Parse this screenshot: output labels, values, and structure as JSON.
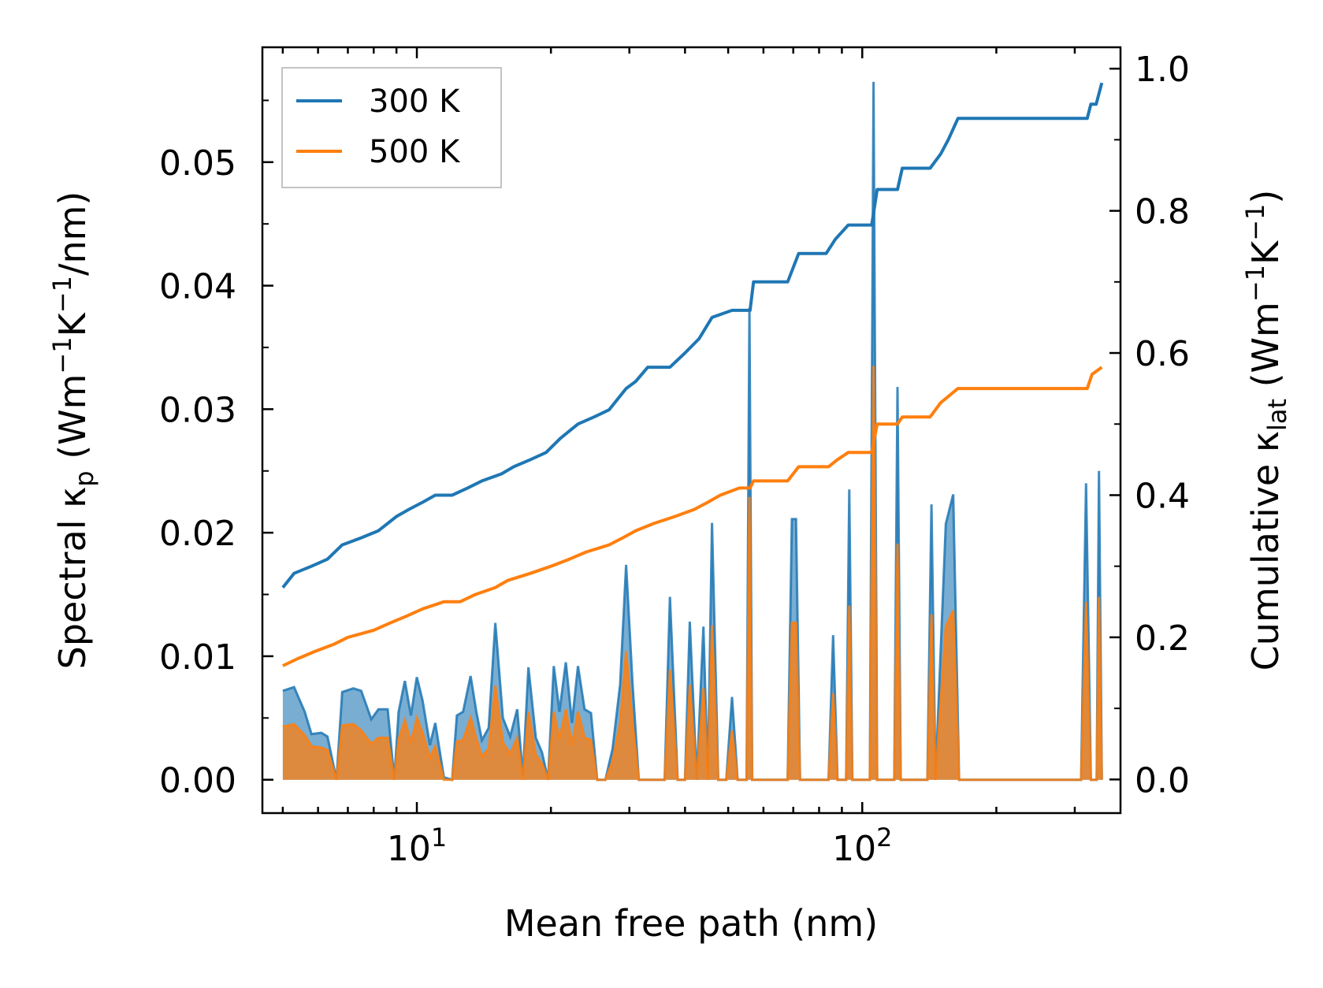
{
  "chart_data": {
    "type": "line",
    "xscale": "log",
    "xlim": [
      4.5,
      380
    ],
    "ylim_left": [
      -0.0027,
      0.0593
    ],
    "ylim_right": [
      -0.0473,
      1.0301
    ],
    "xlabel": "Mean free path (nm)",
    "ylabel_left": {
      "prefix": "Spectral κ",
      "sub": "p",
      "suffix": " (Wm",
      "sup1": "−1",
      "mid": "K",
      "sup2": "−1",
      "end": "/nm)"
    },
    "ylabel_right": {
      "prefix": "Cumulative κ",
      "sub": "lat",
      "suffix": " (Wm",
      "sup1": "−1",
      "mid": "K",
      "sup2": "−1",
      "end": ")"
    },
    "xticks_major": [
      {
        "value": 10,
        "base": "10",
        "exp": "1"
      },
      {
        "value": 100,
        "base": "10",
        "exp": "2"
      }
    ],
    "yticks_left": [
      {
        "value": 0.0,
        "label": "0.00"
      },
      {
        "value": 0.01,
        "label": "0.01"
      },
      {
        "value": 0.02,
        "label": "0.02"
      },
      {
        "value": 0.03,
        "label": "0.03"
      },
      {
        "value": 0.04,
        "label": "0.04"
      },
      {
        "value": 0.05,
        "label": "0.05"
      }
    ],
    "yticks_right": [
      {
        "value": 0.0,
        "label": "0.0"
      },
      {
        "value": 0.2,
        "label": "0.2"
      },
      {
        "value": 0.4,
        "label": "0.4"
      },
      {
        "value": 0.6,
        "label": "0.6"
      },
      {
        "value": 0.8,
        "label": "0.8"
      },
      {
        "value": 1.0,
        "label": "1.0"
      }
    ],
    "legend": {
      "placement": "top-left",
      "entries": [
        "300 K",
        "500 K"
      ]
    },
    "series": [
      {
        "name": "300 K",
        "color": "#1f77b4",
        "cumulative": [
          [
            5.0,
            0.27
          ],
          [
            5.3,
            0.29
          ],
          [
            5.8,
            0.3
          ],
          [
            6.3,
            0.31
          ],
          [
            6.8,
            0.33
          ],
          [
            7.5,
            0.34
          ],
          [
            8.2,
            0.35
          ],
          [
            9.0,
            0.37
          ],
          [
            9.6,
            0.38
          ],
          [
            10.3,
            0.39
          ],
          [
            11.0,
            0.4
          ],
          [
            12.0,
            0.4
          ],
          [
            13.0,
            0.41
          ],
          [
            14.0,
            0.42
          ],
          [
            15.5,
            0.43
          ],
          [
            16.5,
            0.44
          ],
          [
            18.0,
            0.45
          ],
          [
            19.5,
            0.46
          ],
          [
            21.0,
            0.48
          ],
          [
            23.0,
            0.5
          ],
          [
            25.0,
            0.51
          ],
          [
            27.0,
            0.52
          ],
          [
            29.5,
            0.55
          ],
          [
            31.0,
            0.56
          ],
          [
            33.0,
            0.58
          ],
          [
            37.0,
            0.58
          ],
          [
            40.0,
            0.6
          ],
          [
            43.0,
            0.62
          ],
          [
            46.0,
            0.65
          ],
          [
            51.0,
            0.66
          ],
          [
            56.0,
            0.66
          ],
          [
            57.0,
            0.7
          ],
          [
            68.0,
            0.7
          ],
          [
            72.0,
            0.74
          ],
          [
            83.0,
            0.74
          ],
          [
            87.0,
            0.76
          ],
          [
            93.0,
            0.78
          ],
          [
            105.0,
            0.78
          ],
          [
            108.0,
            0.83
          ],
          [
            120.0,
            0.83
          ],
          [
            123.0,
            0.86
          ],
          [
            142.0,
            0.86
          ],
          [
            150.0,
            0.88
          ],
          [
            156.0,
            0.9
          ],
          [
            164.0,
            0.93
          ],
          [
            320.0,
            0.93
          ],
          [
            326.0,
            0.95
          ],
          [
            335.0,
            0.95
          ],
          [
            345.0,
            0.98
          ]
        ],
        "spectral": [
          [
            5.0,
            0.0072
          ],
          [
            5.3,
            0.0075
          ],
          [
            5.6,
            0.0055
          ],
          [
            5.8,
            0.0037
          ],
          [
            6.1,
            0.0038
          ],
          [
            6.3,
            0.0035
          ],
          [
            6.6,
            0.0
          ],
          [
            6.8,
            0.0071
          ],
          [
            7.2,
            0.0074
          ],
          [
            7.5,
            0.0072
          ],
          [
            7.9,
            0.0049
          ],
          [
            8.2,
            0.0057
          ],
          [
            8.6,
            0.0057
          ],
          [
            8.9,
            0.0
          ],
          [
            9.1,
            0.0055
          ],
          [
            9.4,
            0.008
          ],
          [
            9.7,
            0.0052
          ],
          [
            10.0,
            0.0083
          ],
          [
            10.3,
            0.0064
          ],
          [
            10.7,
            0.0028
          ],
          [
            11.0,
            0.0046
          ],
          [
            11.5,
            0.0002
          ],
          [
            12.0,
            0.0
          ],
          [
            12.3,
            0.0052
          ],
          [
            12.7,
            0.0055
          ],
          [
            13.2,
            0.0084
          ],
          [
            13.6,
            0.0055
          ],
          [
            14.0,
            0.0032
          ],
          [
            14.5,
            0.0042
          ],
          [
            15.0,
            0.0127
          ],
          [
            15.6,
            0.005
          ],
          [
            16.2,
            0.0035
          ],
          [
            16.8,
            0.0057
          ],
          [
            17.3,
            0.0003
          ],
          [
            17.8,
            0.0091
          ],
          [
            18.5,
            0.0034
          ],
          [
            19.1,
            0.0022
          ],
          [
            19.7,
            0.0
          ],
          [
            20.3,
            0.0092
          ],
          [
            20.9,
            0.0055
          ],
          [
            21.6,
            0.0095
          ],
          [
            22.3,
            0.0046
          ],
          [
            23.0,
            0.0092
          ],
          [
            23.8,
            0.0057
          ],
          [
            24.6,
            0.0054
          ],
          [
            25.4,
            0.0
          ],
          [
            26.5,
            0.0
          ],
          [
            27.5,
            0.0025
          ],
          [
            28.6,
            0.0077
          ],
          [
            29.5,
            0.0174
          ],
          [
            30.5,
            0.0077
          ],
          [
            31.5,
            0.0
          ],
          [
            33.5,
            0.0
          ],
          [
            34.5,
            0.0
          ],
          [
            36.0,
            0.0
          ],
          [
            37.0,
            0.0148
          ],
          [
            38.5,
            0.0
          ],
          [
            40.0,
            0.0
          ],
          [
            41.0,
            0.0128
          ],
          [
            42.5,
            0.0
          ],
          [
            44.0,
            0.0124
          ],
          [
            45.0,
            0.0
          ],
          [
            46.0,
            0.0208
          ],
          [
            47.5,
            0.0
          ],
          [
            49.5,
            0.0
          ],
          [
            51.0,
            0.0067
          ],
          [
            52.5,
            0.0
          ],
          [
            55.0,
            0.0
          ],
          [
            55.8,
            0.0382
          ],
          [
            56.6,
            0.0
          ],
          [
            68.0,
            0.0
          ],
          [
            69.5,
            0.0211
          ],
          [
            71.0,
            0.0211
          ],
          [
            72.5,
            0.0
          ],
          [
            84.0,
            0.0
          ],
          [
            86.0,
            0.0117
          ],
          [
            88.0,
            0.0
          ],
          [
            92.0,
            0.0
          ],
          [
            93.5,
            0.0235
          ],
          [
            95.0,
            0.0
          ],
          [
            104.0,
            0.0
          ],
          [
            106.0,
            0.0565
          ],
          [
            108.0,
            0.0
          ],
          [
            118.0,
            0.0
          ],
          [
            120.0,
            0.0318
          ],
          [
            122.0,
            0.0
          ],
          [
            140.0,
            0.0
          ],
          [
            143.0,
            0.0223
          ],
          [
            146.0,
            0.0
          ],
          [
            154.0,
            0.0207
          ],
          [
            160.0,
            0.0231
          ],
          [
            165.0,
            0.0
          ],
          [
            310.0,
            0.0
          ],
          [
            318.0,
            0.024
          ],
          [
            326.0,
            0.0
          ],
          [
            336.0,
            0.0
          ],
          [
            340.0,
            0.025
          ],
          [
            345.0,
            0.0
          ]
        ]
      },
      {
        "name": "500 K",
        "color": "#ff7f0e",
        "cumulative": [
          [
            5.0,
            0.16
          ],
          [
            5.4,
            0.17
          ],
          [
            5.9,
            0.18
          ],
          [
            6.5,
            0.19
          ],
          [
            7.0,
            0.2
          ],
          [
            8.0,
            0.21
          ],
          [
            8.7,
            0.22
          ],
          [
            9.5,
            0.23
          ],
          [
            10.3,
            0.24
          ],
          [
            11.5,
            0.25
          ],
          [
            12.5,
            0.25
          ],
          [
            13.5,
            0.26
          ],
          [
            15.0,
            0.27
          ],
          [
            16.0,
            0.28
          ],
          [
            18.0,
            0.29
          ],
          [
            20.0,
            0.3
          ],
          [
            22.0,
            0.31
          ],
          [
            24.0,
            0.32
          ],
          [
            27.0,
            0.33
          ],
          [
            29.0,
            0.34
          ],
          [
            31.0,
            0.35
          ],
          [
            34.0,
            0.36
          ],
          [
            38.0,
            0.37
          ],
          [
            42.0,
            0.38
          ],
          [
            45.0,
            0.39
          ],
          [
            48.0,
            0.4
          ],
          [
            53.0,
            0.41
          ],
          [
            56.0,
            0.41
          ],
          [
            57.0,
            0.42
          ],
          [
            68.0,
            0.42
          ],
          [
            72.0,
            0.44
          ],
          [
            84.0,
            0.44
          ],
          [
            88.0,
            0.45
          ],
          [
            93.0,
            0.46
          ],
          [
            105.0,
            0.46
          ],
          [
            108.0,
            0.5
          ],
          [
            120.0,
            0.5
          ],
          [
            123.0,
            0.51
          ],
          [
            142.0,
            0.51
          ],
          [
            150.0,
            0.53
          ],
          [
            164.0,
            0.55
          ],
          [
            320.0,
            0.55
          ],
          [
            328.0,
            0.57
          ],
          [
            345.0,
            0.58
          ]
        ],
        "spectral": [
          [
            5.0,
            0.0043
          ],
          [
            5.3,
            0.0045
          ],
          [
            5.6,
            0.0036
          ],
          [
            5.8,
            0.0027
          ],
          [
            6.1,
            0.0026
          ],
          [
            6.3,
            0.0024
          ],
          [
            6.6,
            0.0
          ],
          [
            6.8,
            0.0044
          ],
          [
            7.2,
            0.0045
          ],
          [
            7.5,
            0.004
          ],
          [
            7.9,
            0.0029
          ],
          [
            8.2,
            0.0034
          ],
          [
            8.6,
            0.0034
          ],
          [
            8.9,
            0.0
          ],
          [
            9.1,
            0.0033
          ],
          [
            9.4,
            0.0048
          ],
          [
            9.7,
            0.003
          ],
          [
            10.0,
            0.005
          ],
          [
            10.3,
            0.0038
          ],
          [
            10.7,
            0.0018
          ],
          [
            11.0,
            0.0027
          ],
          [
            11.5,
            0.0
          ],
          [
            12.0,
            0.0
          ],
          [
            12.3,
            0.0031
          ],
          [
            12.7,
            0.0032
          ],
          [
            13.2,
            0.005
          ],
          [
            13.6,
            0.0033
          ],
          [
            14.0,
            0.0019
          ],
          [
            14.5,
            0.0025
          ],
          [
            15.0,
            0.0076
          ],
          [
            15.6,
            0.003
          ],
          [
            16.2,
            0.0021
          ],
          [
            16.8,
            0.0034
          ],
          [
            17.3,
            0.0
          ],
          [
            17.8,
            0.0055
          ],
          [
            18.5,
            0.002
          ],
          [
            19.1,
            0.0013
          ],
          [
            19.7,
            0.0
          ],
          [
            20.3,
            0.0055
          ],
          [
            20.9,
            0.0033
          ],
          [
            21.6,
            0.0057
          ],
          [
            22.3,
            0.0028
          ],
          [
            23.0,
            0.0055
          ],
          [
            23.8,
            0.0034
          ],
          [
            24.6,
            0.0032
          ],
          [
            25.4,
            0.0
          ],
          [
            26.5,
            0.0
          ],
          [
            27.5,
            0.0015
          ],
          [
            28.6,
            0.0046
          ],
          [
            29.5,
            0.0104
          ],
          [
            30.5,
            0.0046
          ],
          [
            31.5,
            0.0
          ],
          [
            33.5,
            0.0
          ],
          [
            34.5,
            0.0
          ],
          [
            36.0,
            0.0
          ],
          [
            37.0,
            0.0089
          ],
          [
            38.5,
            0.0
          ],
          [
            40.0,
            0.0
          ],
          [
            41.0,
            0.0077
          ],
          [
            42.5,
            0.0
          ],
          [
            44.0,
            0.0074
          ],
          [
            45.0,
            0.0
          ],
          [
            46.0,
            0.0125
          ],
          [
            47.5,
            0.0
          ],
          [
            49.5,
            0.0
          ],
          [
            51.0,
            0.004
          ],
          [
            52.5,
            0.0
          ],
          [
            55.0,
            0.0
          ],
          [
            55.8,
            0.0229
          ],
          [
            56.6,
            0.0
          ],
          [
            68.0,
            0.0
          ],
          [
            69.5,
            0.0127
          ],
          [
            71.0,
            0.0127
          ],
          [
            72.5,
            0.0
          ],
          [
            84.0,
            0.0
          ],
          [
            86.0,
            0.007
          ],
          [
            88.0,
            0.0
          ],
          [
            92.0,
            0.0
          ],
          [
            93.5,
            0.0141
          ],
          [
            95.0,
            0.0
          ],
          [
            104.0,
            0.0
          ],
          [
            106.0,
            0.0335
          ],
          [
            108.0,
            0.0
          ],
          [
            118.0,
            0.0
          ],
          [
            120.0,
            0.0191
          ],
          [
            122.0,
            0.0
          ],
          [
            140.0,
            0.0
          ],
          [
            143.0,
            0.0134
          ],
          [
            146.0,
            0.0
          ],
          [
            154.0,
            0.0124
          ],
          [
            160.0,
            0.0137
          ],
          [
            165.0,
            0.0
          ],
          [
            310.0,
            0.0
          ],
          [
            318.0,
            0.0144
          ],
          [
            326.0,
            0.0
          ],
          [
            336.0,
            0.0
          ],
          [
            340.0,
            0.0148
          ],
          [
            345.0,
            0.0
          ]
        ]
      }
    ]
  }
}
